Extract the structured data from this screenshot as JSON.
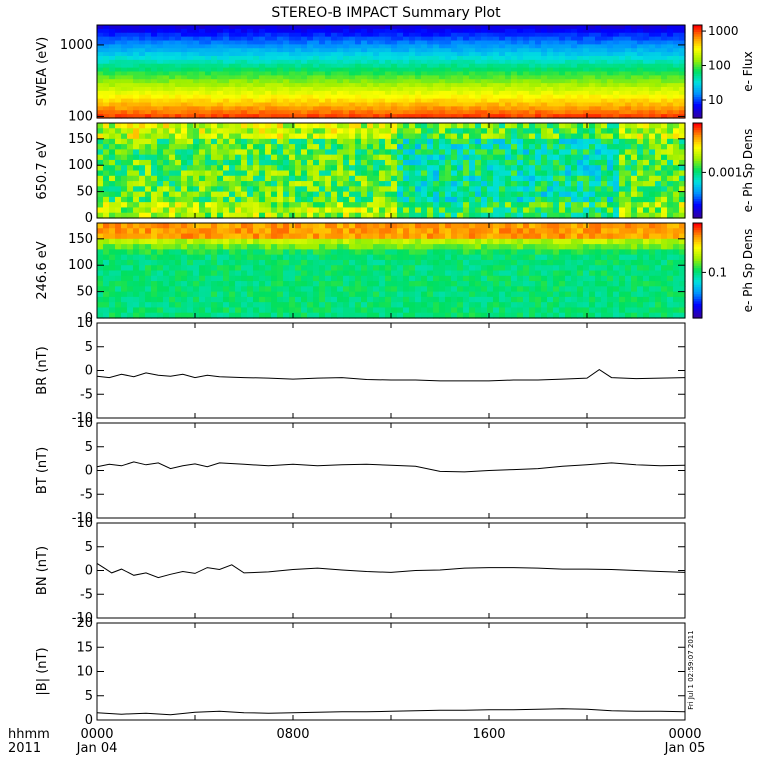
{
  "title": "STEREO-B IMPACT Summary Plot",
  "x_axis": {
    "ticks": [
      "0000",
      "0800",
      "1600",
      "0000"
    ],
    "tick_sublabels": [
      "Jan 04",
      "",
      "",
      "Jan 05"
    ],
    "label_line1": "hhmm",
    "label_line2": "2011",
    "range_hours": [
      0,
      24
    ]
  },
  "side_stamp": "Fri Jul 1 02:59:07 2011",
  "chart_data": [
    {
      "type": "heatmap",
      "id": "swea",
      "ylabel": "SWEA (eV)",
      "ylim": [
        95,
        1900
      ],
      "yscale": "log",
      "yticks": [
        "1000",
        "100"
      ],
      "colorbar": {
        "label": "e- Flux",
        "ticks": [
          "1000",
          "100",
          "10"
        ],
        "scale": "log",
        "range": [
          3,
          1500
        ]
      },
      "colormap": [
        "#3000a8",
        "#0000ff",
        "#0090ff",
        "#00e0e0",
        "#00e060",
        "#a0f000",
        "#ffff00",
        "#ff9000",
        "#ff0000"
      ],
      "description_rows": [
        {
          "energy": 1900,
          "level": 0.05
        },
        {
          "energy": 1500,
          "level": 0.12
        },
        {
          "energy": 1000,
          "level": 0.28
        },
        {
          "energy": 700,
          "level": 0.4
        },
        {
          "energy": 500,
          "level": 0.52
        },
        {
          "energy": 350,
          "level": 0.63
        },
        {
          "energy": 250,
          "level": 0.74
        },
        {
          "energy": 180,
          "level": 0.85
        },
        {
          "energy": 130,
          "level": 0.93
        },
        {
          "energy": 95,
          "level": 0.96
        }
      ]
    },
    {
      "type": "heatmap",
      "id": "pad650",
      "ylabel": "650.7 eV",
      "ylim": [
        0,
        180
      ],
      "yticks": [
        "150",
        "100",
        "50",
        "0"
      ],
      "colorbar": {
        "label": "e- Ph Sp Dens",
        "ticks": [
          "0.001"
        ],
        "scale": "log"
      },
      "colormap": [
        "#3000a8",
        "#0000ff",
        "#0090ff",
        "#00e0e0",
        "#00e060",
        "#a0f000",
        "#ffff00",
        "#ff9000",
        "#ff0000"
      ]
    },
    {
      "type": "heatmap",
      "id": "pad246",
      "ylabel": "246.6 eV",
      "ylim": [
        0,
        180
      ],
      "yticks": [
        "150",
        "100",
        "50",
        "0"
      ],
      "colorbar": {
        "label": "e- Ph Sp Dens",
        "ticks": [
          "0.1"
        ],
        "scale": "log"
      },
      "colormap": [
        "#3000a8",
        "#0000ff",
        "#0090ff",
        "#00e0e0",
        "#00e060",
        "#a0f000",
        "#ffff00",
        "#ff9000",
        "#ff0000"
      ]
    },
    {
      "type": "line",
      "id": "br",
      "ylabel": "BR (nT)",
      "ylim": [
        -10,
        10
      ],
      "yticks": [
        "10",
        "5",
        "0",
        "-5",
        "-10"
      ],
      "x": [
        0,
        0.5,
        1,
        1.5,
        2,
        2.5,
        3,
        3.5,
        4,
        4.5,
        5,
        6,
        7,
        8,
        9,
        10,
        11,
        12,
        13,
        14,
        15,
        16,
        17,
        18,
        19,
        20,
        20.5,
        21,
        21.5,
        22,
        23,
        24
      ],
      "y": [
        -1.2,
        -1.5,
        -0.8,
        -1.3,
        -0.5,
        -1.0,
        -1.2,
        -0.8,
        -1.5,
        -1.0,
        -1.3,
        -1.5,
        -1.6,
        -1.8,
        -1.6,
        -1.5,
        -1.9,
        -2.0,
        -2.0,
        -2.2,
        -2.2,
        -2.2,
        -2.0,
        -2.0,
        -1.8,
        -1.6,
        0.2,
        -1.5,
        -1.6,
        -1.7,
        -1.6,
        -1.5
      ]
    },
    {
      "type": "line",
      "id": "bt",
      "ylabel": "BT (nT)",
      "ylim": [
        -10,
        10
      ],
      "yticks": [
        "10",
        "5",
        "0",
        "-5",
        "-10"
      ],
      "x": [
        0,
        0.5,
        1,
        1.5,
        2,
        2.5,
        3,
        3.5,
        4,
        4.5,
        5,
        6,
        7,
        8,
        9,
        10,
        11,
        12,
        13,
        14,
        15,
        16,
        17,
        18,
        19,
        20,
        21,
        22,
        23,
        24
      ],
      "y": [
        0.8,
        1.3,
        1.0,
        1.8,
        1.2,
        1.6,
        0.4,
        1.0,
        1.4,
        0.8,
        1.6,
        1.3,
        1.0,
        1.3,
        1.0,
        1.2,
        1.3,
        1.1,
        0.9,
        -0.2,
        -0.3,
        0.0,
        0.2,
        0.4,
        0.9,
        1.2,
        1.6,
        1.2,
        1.0,
        1.1
      ]
    },
    {
      "type": "line",
      "id": "bn",
      "ylabel": "BN (nT)",
      "ylim": [
        -10,
        10
      ],
      "yticks": [
        "10",
        "5",
        "0",
        "-5",
        "-10"
      ],
      "x": [
        0,
        0.3,
        0.6,
        1,
        1.5,
        2,
        2.5,
        3,
        3.5,
        4,
        4.5,
        5,
        5.5,
        6,
        7,
        8,
        9,
        10,
        11,
        12,
        13,
        14,
        15,
        16,
        17,
        18,
        19,
        20,
        21,
        22,
        23,
        24
      ],
      "y": [
        1.5,
        0.5,
        -0.5,
        0.3,
        -1.0,
        -0.5,
        -1.5,
        -0.8,
        -0.2,
        -0.6,
        0.6,
        0.2,
        1.2,
        -0.5,
        -0.3,
        0.2,
        0.5,
        0.1,
        -0.2,
        -0.4,
        0.0,
        0.1,
        0.5,
        0.6,
        0.6,
        0.5,
        0.3,
        0.3,
        0.2,
        0.0,
        -0.2,
        -0.4
      ]
    },
    {
      "type": "line",
      "id": "bmag",
      "ylabel": "|B| (nT)",
      "ylim": [
        0,
        20
      ],
      "yticks": [
        "20",
        "15",
        "10",
        "5",
        "0"
      ],
      "x": [
        0,
        1,
        2,
        3,
        4,
        5,
        6,
        7,
        8,
        9,
        10,
        11,
        12,
        13,
        14,
        15,
        16,
        17,
        18,
        19,
        20,
        21,
        22,
        23,
        24
      ],
      "y": [
        1.5,
        1.2,
        1.4,
        1.1,
        1.6,
        1.8,
        1.5,
        1.4,
        1.5,
        1.6,
        1.7,
        1.7,
        1.8,
        1.9,
        2.0,
        2.0,
        2.1,
        2.1,
        2.2,
        2.3,
        2.2,
        1.9,
        1.8,
        1.8,
        1.7
      ]
    }
  ]
}
